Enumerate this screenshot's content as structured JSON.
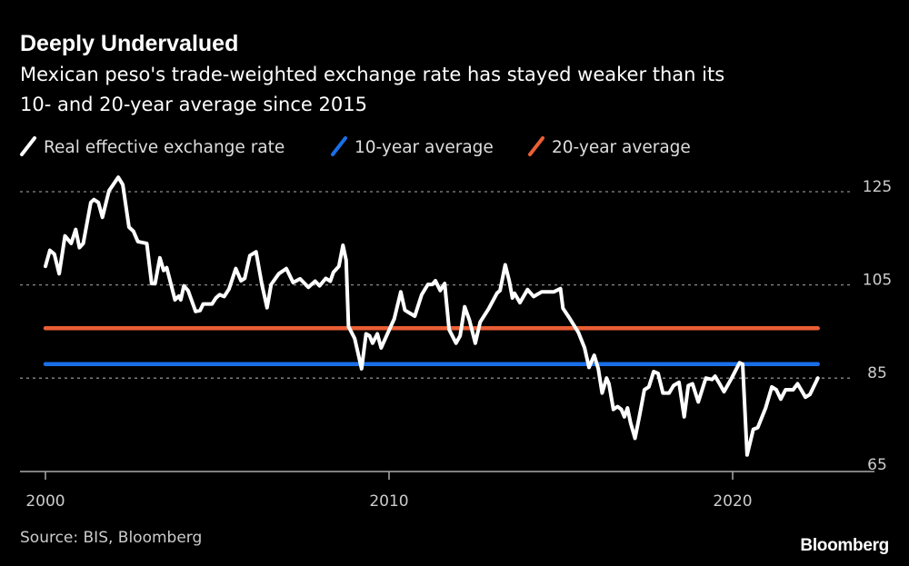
{
  "chart_data": {
    "type": "line",
    "title": "Deeply Undervalued",
    "subtitle_lines": [
      "Mexican peso's trade-weighted exchange rate has stayed weaker than its",
      "10- and 20-year average since 2015"
    ],
    "xlabel": "",
    "ylabel": "",
    "xlim": [
      2000,
      2023
    ],
    "ylim": [
      65,
      128
    ],
    "x_ticks": [
      "2000",
      "2010",
      "2020"
    ],
    "y_ticks": [
      "125",
      "105",
      "85",
      "65"
    ],
    "grid": "horizontal dotted",
    "legend_position": "top",
    "source": "Source: BIS, Bloomberg",
    "logo": "Bloomberg",
    "series": [
      {
        "name": "Real effective exchange rate",
        "color": "#ffffff",
        "x": [
          2000.0,
          2000.13,
          2000.26,
          2000.4,
          2000.57,
          2000.75,
          2000.88,
          2000.99,
          2001.1,
          2001.32,
          2001.41,
          2001.54,
          2001.66,
          2001.85,
          2002.12,
          2002.25,
          2002.43,
          2002.56,
          2002.69,
          2002.82,
          2002.95,
          2003.09,
          2003.19,
          2003.33,
          2003.44,
          2003.53,
          2003.77,
          2003.88,
          2003.94,
          2004.03,
          2004.15,
          2004.37,
          2004.5,
          2004.59,
          2004.85,
          2004.96,
          2005.07,
          2005.2,
          2005.34,
          2005.54,
          2005.69,
          2005.8,
          2005.95,
          2006.13,
          2006.3,
          2006.45,
          2006.57,
          2006.79,
          2007.01,
          2007.21,
          2007.41,
          2007.65,
          2007.85,
          2007.98,
          2008.16,
          2008.29,
          2008.38,
          2008.54,
          2008.66,
          2008.75,
          2008.82,
          2009.0,
          2009.2,
          2009.33,
          2009.43,
          2009.52,
          2009.66,
          2009.77,
          2009.97,
          2010.15,
          2010.34,
          2010.46,
          2010.59,
          2010.75,
          2010.95,
          2011.13,
          2011.26,
          2011.35,
          2011.49,
          2011.62,
          2011.75,
          2011.95,
          2012.07,
          2012.2,
          2012.34,
          2012.51,
          2012.65,
          2012.9,
          2013.14,
          2013.23,
          2013.38,
          2013.5,
          2013.59,
          2013.65,
          2013.81,
          2014.03,
          2014.21,
          2014.44,
          2014.79,
          2014.99,
          2015.06,
          2015.24,
          2015.51,
          2015.69,
          2015.82,
          2015.97,
          2016.09,
          2016.2,
          2016.33,
          2016.4,
          2016.53,
          2016.65,
          2016.76,
          2016.85,
          2016.94,
          2017.03,
          2017.16,
          2017.3,
          2017.43,
          2017.56,
          2017.7,
          2017.83,
          2017.97,
          2018.15,
          2018.28,
          2018.44,
          2018.59,
          2018.71,
          2018.83,
          2019.0,
          2019.22,
          2019.4,
          2019.49,
          2019.62,
          2019.75,
          2019.97,
          2020.2,
          2020.29,
          2020.42,
          2020.6,
          2020.73,
          2020.96,
          2021.14,
          2021.27,
          2021.4,
          2021.54,
          2021.76,
          2021.89,
          2022.12,
          2022.25,
          2022.48
        ],
        "values": [
          109.0,
          112.4,
          111.6,
          107.4,
          115.5,
          113.9,
          116.9,
          113.0,
          113.9,
          122.7,
          123.3,
          122.7,
          119.5,
          125.2,
          128.1,
          126.5,
          117.4,
          116.5,
          114.3,
          114.1,
          113.9,
          105.3,
          105.3,
          110.8,
          108.1,
          108.7,
          101.8,
          102.6,
          101.8,
          104.8,
          103.8,
          99.3,
          99.5,
          100.9,
          100.9,
          102.2,
          102.9,
          102.5,
          104.1,
          108.5,
          105.9,
          106.4,
          111.3,
          112.1,
          105.1,
          100.1,
          105.1,
          107.4,
          108.5,
          105.5,
          106.3,
          104.5,
          105.8,
          104.8,
          106.4,
          105.8,
          107.7,
          109.0,
          113.5,
          110.3,
          96.1,
          93.5,
          87.0,
          94.5,
          94.1,
          92.5,
          94.5,
          91.5,
          94.8,
          97.7,
          103.5,
          99.6,
          99.0,
          98.3,
          102.9,
          105.1,
          105.1,
          105.9,
          103.8,
          105.3,
          95.4,
          92.5,
          94.1,
          100.3,
          97.4,
          92.5,
          97.0,
          99.9,
          103.2,
          103.8,
          109.3,
          105.8,
          102.2,
          103.2,
          101.2,
          104.0,
          102.5,
          103.5,
          103.5,
          104.2,
          100.0,
          98.0,
          94.8,
          91.5,
          87.3,
          89.9,
          87.0,
          81.8,
          85.0,
          83.8,
          78.3,
          78.9,
          78.3,
          76.7,
          78.6,
          75.4,
          72.1,
          77.3,
          82.5,
          83.1,
          86.4,
          86.0,
          81.8,
          81.8,
          83.4,
          84.1,
          76.7,
          83.4,
          83.8,
          79.9,
          85.0,
          84.7,
          85.4,
          83.8,
          82.1,
          85.0,
          88.3,
          88.0,
          68.5,
          74.0,
          74.4,
          78.6,
          83.1,
          82.5,
          80.5,
          82.5,
          82.5,
          83.8,
          80.9,
          81.5,
          85.0
        ]
      },
      {
        "name": "10-year average",
        "color": "#1a6fe8",
        "x": [
          2000.0,
          2022.48
        ],
        "values": [
          88.0,
          88.0
        ]
      },
      {
        "name": "20-year average",
        "color": "#ea5f36",
        "x": [
          2000.0,
          2022.48
        ],
        "values": [
          95.7,
          95.7
        ]
      }
    ]
  }
}
